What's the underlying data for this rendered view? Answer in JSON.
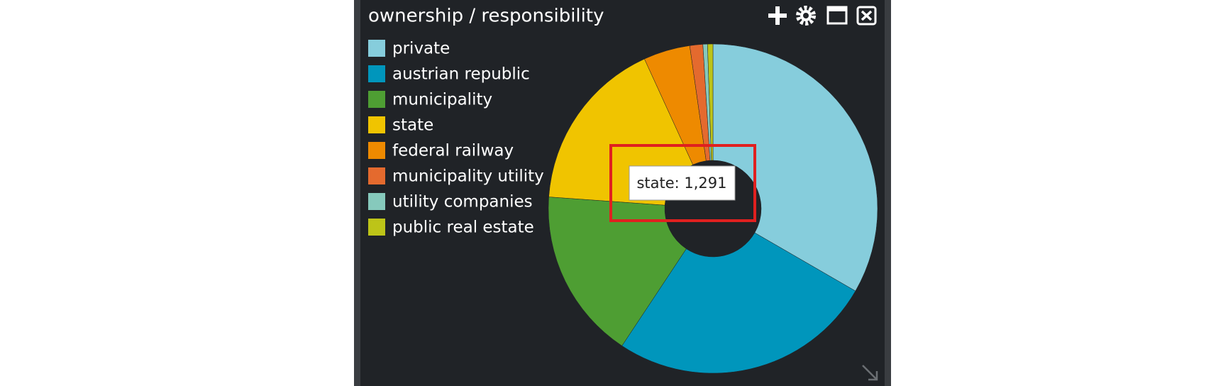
{
  "chart_data": {
    "type": "donut",
    "title": "ownership / responsibility",
    "categories": [
      "private",
      "austrian republic",
      "municipality",
      "state",
      "federal railway",
      "municipality utility",
      "utility companies",
      "public real estate"
    ],
    "values": [
      2527,
      1969,
      1274,
      1291,
      347,
      97,
      34,
      40
    ],
    "colors": [
      "#86cddc",
      "#0096bc",
      "#4e9e33",
      "#f0c400",
      "#ee8a00",
      "#e46a2e",
      "#86c9bc",
      "#bdc418"
    ],
    "tooltip": "state: 1,291"
  }
}
